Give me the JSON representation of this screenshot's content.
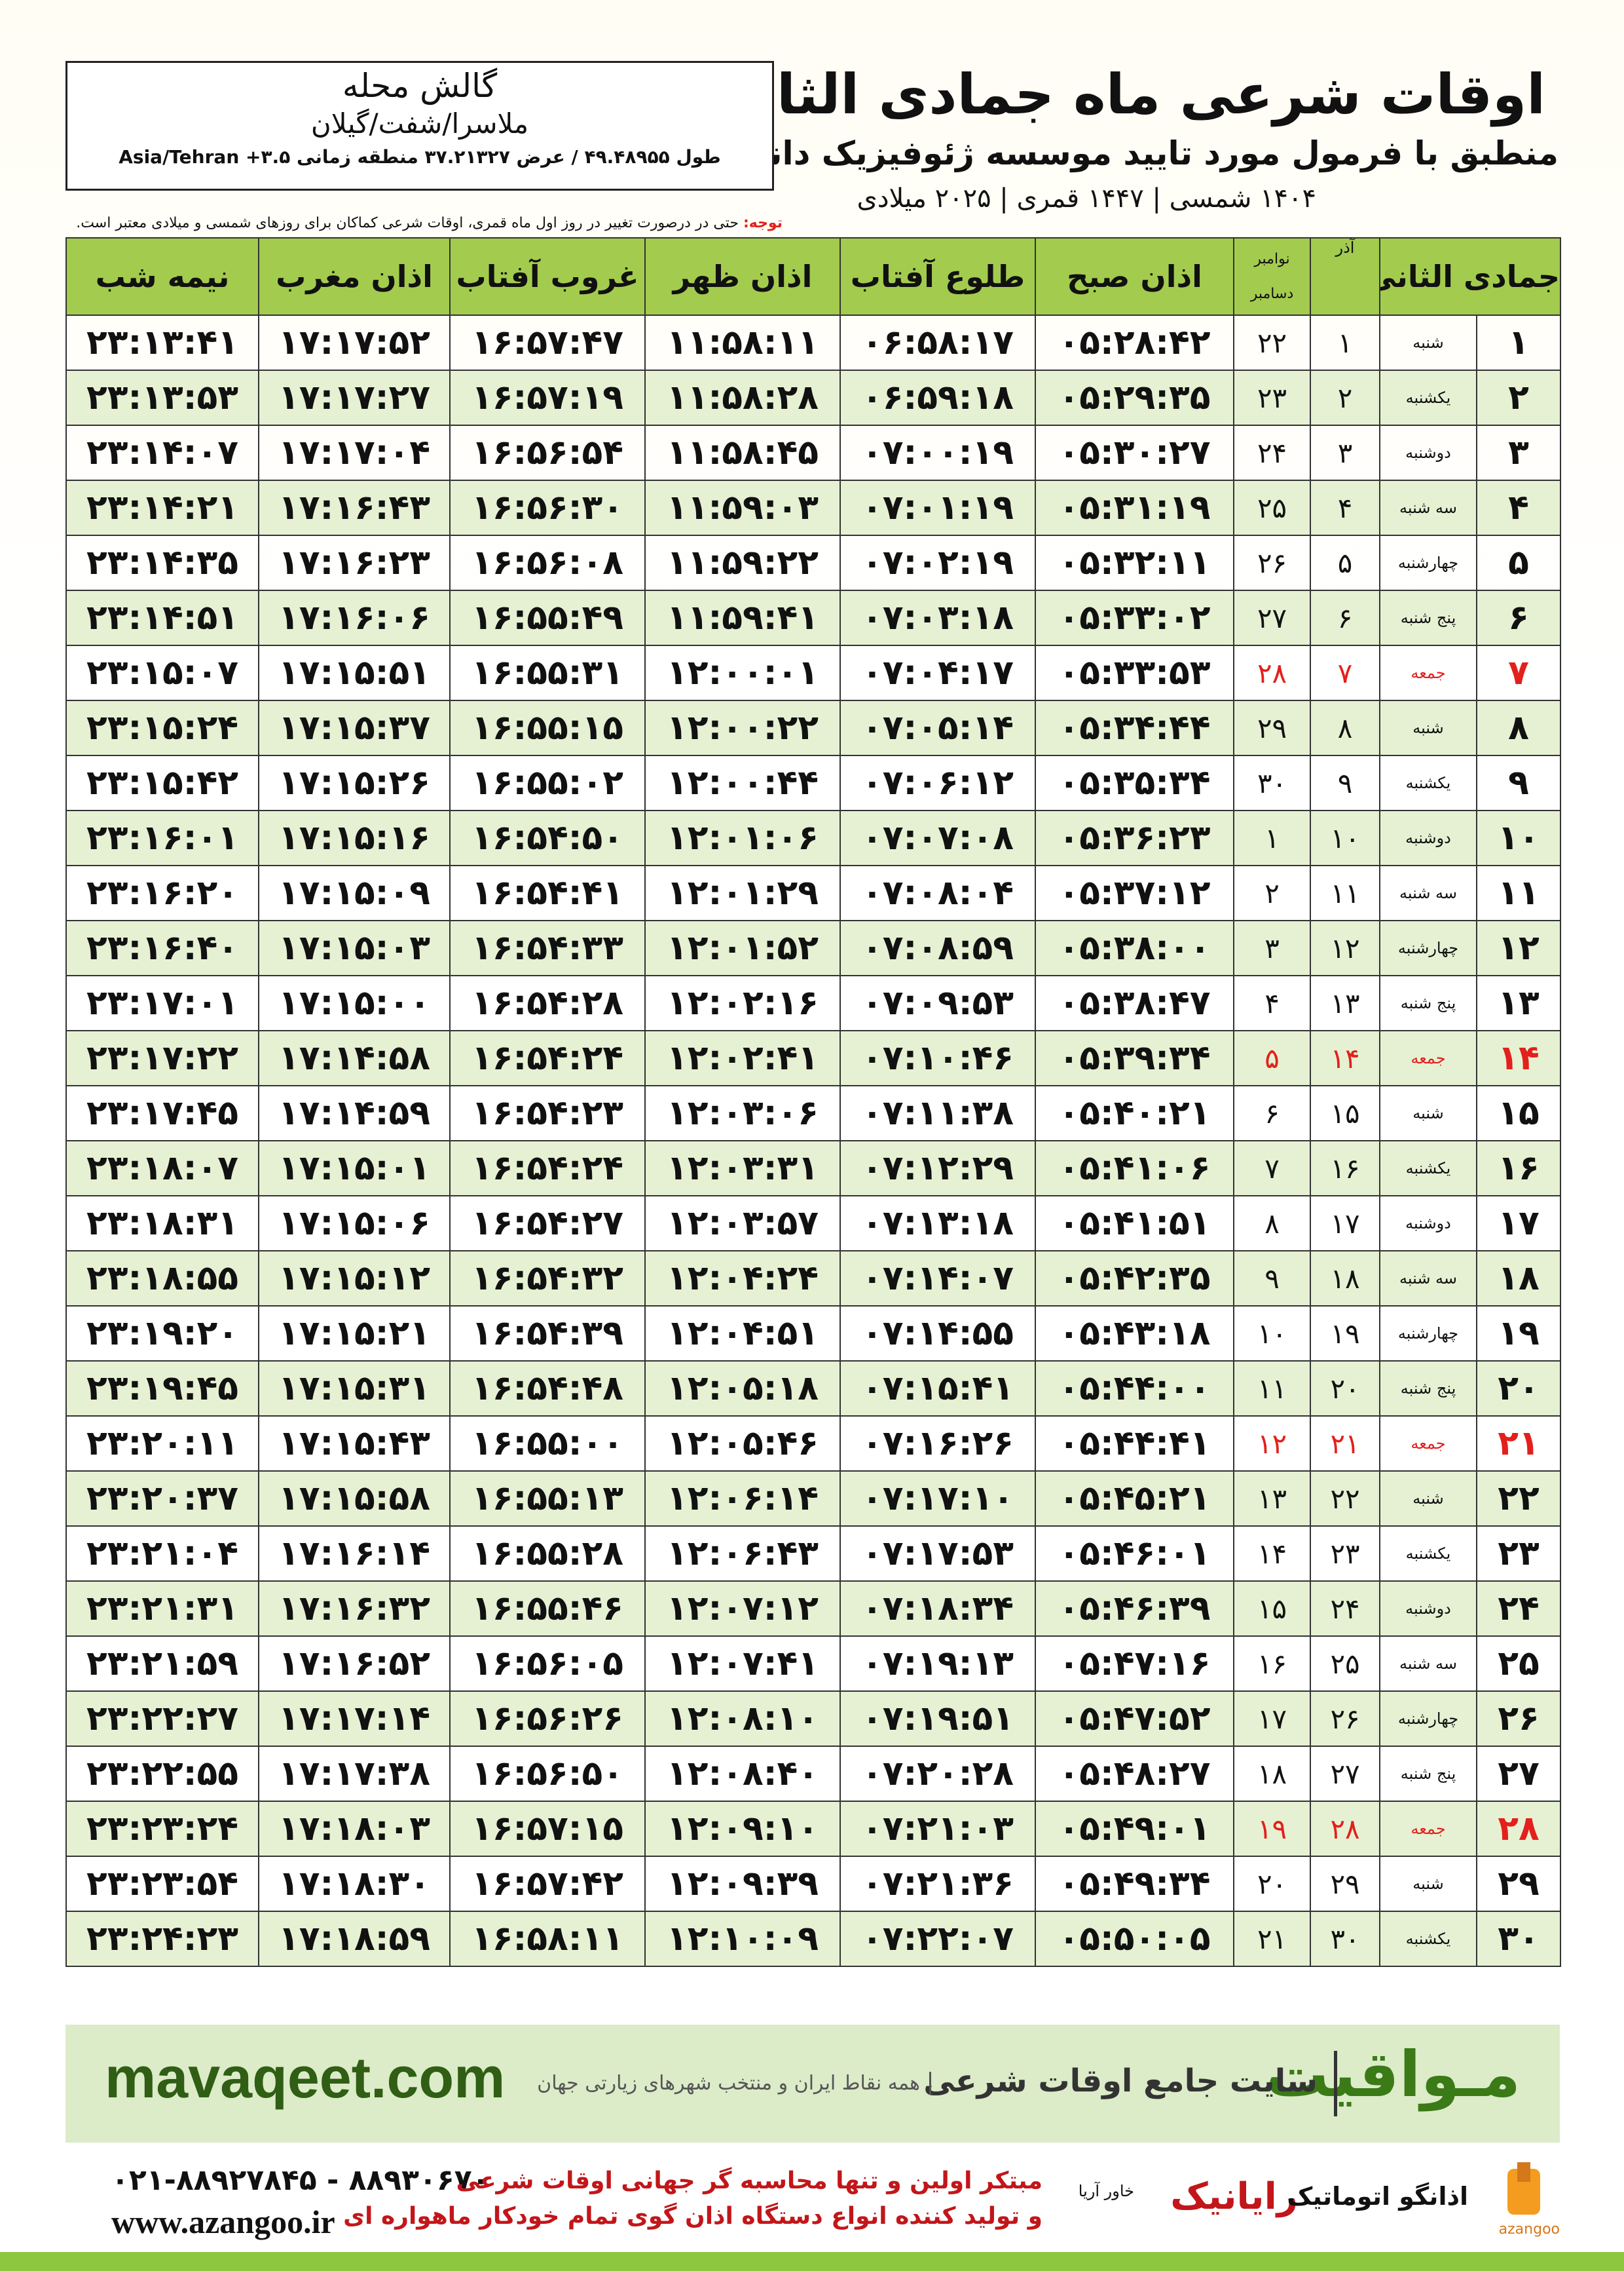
{
  "header": {
    "title": "اوقات شرعی ماه جمادی الثانی",
    "subtitle": "منطبق با فرمول مورد تایید موسسه ژئوفیزیک دانشگاه تهران",
    "dates": "۱۴۰۴ شمسی | ۱۴۴۷ قمری | ۲۰۲۵ میلادی"
  },
  "location": {
    "name": "گالش محله",
    "region": "ملاسرا/شفت/گیلان",
    "coords": "طول ۴۹.۴۸۹۵۵ / عرض ۳۷.۲۱۳۲۷ منطقه زمانی ۳.۵+ Asia/Tehran"
  },
  "note": {
    "label": "توجه:",
    "text": "حتی در درصورت تغییر در روز اول ماه قمری، اوقات شرعی کماکان برای روزهای شمسی و میلادی معتبر است."
  },
  "table": {
    "headers": {
      "hijri": "جمادی الثانی",
      "azar": "آذر",
      "gregorian_top": "نوامبر",
      "gregorian_bottom": "دسامبر",
      "times": [
        "اذان صبح",
        "طلوع آفتاب",
        "اذان ظهر",
        "غروب آفتاب",
        "اذان مغرب",
        "نیمه شب"
      ]
    },
    "highlight_color": "#e3201b",
    "rows": [
      {
        "hijri": "۱",
        "weekday": "شنبه",
        "azar": "۱",
        "gregorian": "۲۲",
        "times": [
          "۰۵:۲۸:۴۲",
          "۰۶:۵۸:۱۷",
          "۱۱:۵۸:۱۱",
          "۱۶:۵۷:۴۷",
          "۱۷:۱۷:۵۲",
          "۲۳:۱۳:۴۱"
        ]
      },
      {
        "hijri": "۲",
        "weekday": "یکشنبه",
        "azar": "۲",
        "gregorian": "۲۳",
        "times": [
          "۰۵:۲۹:۳۵",
          "۰۶:۵۹:۱۸",
          "۱۱:۵۸:۲۸",
          "۱۶:۵۷:۱۹",
          "۱۷:۱۷:۲۷",
          "۲۳:۱۳:۵۳"
        ]
      },
      {
        "hijri": "۳",
        "weekday": "دوشنبه",
        "azar": "۳",
        "gregorian": "۲۴",
        "times": [
          "۰۵:۳۰:۲۷",
          "۰۷:۰۰:۱۹",
          "۱۱:۵۸:۴۵",
          "۱۶:۵۶:۵۴",
          "۱۷:۱۷:۰۴",
          "۲۳:۱۴:۰۷"
        ]
      },
      {
        "hijri": "۴",
        "weekday": "سه شنبه",
        "azar": "۴",
        "gregorian": "۲۵",
        "times": [
          "۰۵:۳۱:۱۹",
          "۰۷:۰۱:۱۹",
          "۱۱:۵۹:۰۳",
          "۱۶:۵۶:۳۰",
          "۱۷:۱۶:۴۳",
          "۲۳:۱۴:۲۱"
        ]
      },
      {
        "hijri": "۵",
        "weekday": "چهارشنبه",
        "azar": "۵",
        "gregorian": "۲۶",
        "times": [
          "۰۵:۳۲:۱۱",
          "۰۷:۰۲:۱۹",
          "۱۱:۵۹:۲۲",
          "۱۶:۵۶:۰۸",
          "۱۷:۱۶:۲۳",
          "۲۳:۱۴:۳۵"
        ]
      },
      {
        "hijri": "۶",
        "weekday": "پنج شنبه",
        "azar": "۶",
        "gregorian": "۲۷",
        "times": [
          "۰۵:۳۳:۰۲",
          "۰۷:۰۳:۱۸",
          "۱۱:۵۹:۴۱",
          "۱۶:۵۵:۴۹",
          "۱۷:۱۶:۰۶",
          "۲۳:۱۴:۵۱"
        ]
      },
      {
        "hijri": "۷",
        "weekday": "جمعه",
        "azar": "۷",
        "gregorian": "۲۸",
        "times": [
          "۰۵:۳۳:۵۳",
          "۰۷:۰۴:۱۷",
          "۱۲:۰۰:۰۱",
          "۱۶:۵۵:۳۱",
          "۱۷:۱۵:۵۱",
          "۲۳:۱۵:۰۷"
        ],
        "highlight": true
      },
      {
        "hijri": "۸",
        "weekday": "شنبه",
        "azar": "۸",
        "gregorian": "۲۹",
        "times": [
          "۰۵:۳۴:۴۴",
          "۰۷:۰۵:۱۴",
          "۱۲:۰۰:۲۲",
          "۱۶:۵۵:۱۵",
          "۱۷:۱۵:۳۷",
          "۲۳:۱۵:۲۴"
        ]
      },
      {
        "hijri": "۹",
        "weekday": "یکشنبه",
        "azar": "۹",
        "gregorian": "۳۰",
        "times": [
          "۰۵:۳۵:۳۴",
          "۰۷:۰۶:۱۲",
          "۱۲:۰۰:۴۴",
          "۱۶:۵۵:۰۲",
          "۱۷:۱۵:۲۶",
          "۲۳:۱۵:۴۲"
        ]
      },
      {
        "hijri": "۱۰",
        "weekday": "دوشنبه",
        "azar": "۱۰",
        "gregorian": "۱",
        "times": [
          "۰۵:۳۶:۲۳",
          "۰۷:۰۷:۰۸",
          "۱۲:۰۱:۰۶",
          "۱۶:۵۴:۵۰",
          "۱۷:۱۵:۱۶",
          "۲۳:۱۶:۰۱"
        ]
      },
      {
        "hijri": "۱۱",
        "weekday": "سه شنبه",
        "azar": "۱۱",
        "gregorian": "۲",
        "times": [
          "۰۵:۳۷:۱۲",
          "۰۷:۰۸:۰۴",
          "۱۲:۰۱:۲۹",
          "۱۶:۵۴:۴۱",
          "۱۷:۱۵:۰۹",
          "۲۳:۱۶:۲۰"
        ]
      },
      {
        "hijri": "۱۲",
        "weekday": "چهارشنبه",
        "azar": "۱۲",
        "gregorian": "۳",
        "times": [
          "۰۵:۳۸:۰۰",
          "۰۷:۰۸:۵۹",
          "۱۲:۰۱:۵۲",
          "۱۶:۵۴:۳۳",
          "۱۷:۱۵:۰۳",
          "۲۳:۱۶:۴۰"
        ]
      },
      {
        "hijri": "۱۳",
        "weekday": "پنج شنبه",
        "azar": "۱۳",
        "gregorian": "۴",
        "times": [
          "۰۵:۳۸:۴۷",
          "۰۷:۰۹:۵۳",
          "۱۲:۰۲:۱۶",
          "۱۶:۵۴:۲۸",
          "۱۷:۱۵:۰۰",
          "۲۳:۱۷:۰۱"
        ]
      },
      {
        "hijri": "۱۴",
        "weekday": "جمعه",
        "azar": "۱۴",
        "gregorian": "۵",
        "times": [
          "۰۵:۳۹:۳۴",
          "۰۷:۱۰:۴۶",
          "۱۲:۰۲:۴۱",
          "۱۶:۵۴:۲۴",
          "۱۷:۱۴:۵۸",
          "۲۳:۱۷:۲۲"
        ],
        "highlight": true
      },
      {
        "hijri": "۱۵",
        "weekday": "شنبه",
        "azar": "۱۵",
        "gregorian": "۶",
        "times": [
          "۰۵:۴۰:۲۱",
          "۰۷:۱۱:۳۸",
          "۱۲:۰۳:۰۶",
          "۱۶:۵۴:۲۳",
          "۱۷:۱۴:۵۹",
          "۲۳:۱۷:۴۵"
        ]
      },
      {
        "hijri": "۱۶",
        "weekday": "یکشنبه",
        "azar": "۱۶",
        "gregorian": "۷",
        "times": [
          "۰۵:۴۱:۰۶",
          "۰۷:۱۲:۲۹",
          "۱۲:۰۳:۳۱",
          "۱۶:۵۴:۲۴",
          "۱۷:۱۵:۰۱",
          "۲۳:۱۸:۰۷"
        ]
      },
      {
        "hijri": "۱۷",
        "weekday": "دوشنبه",
        "azar": "۱۷",
        "gregorian": "۸",
        "times": [
          "۰۵:۴۱:۵۱",
          "۰۷:۱۳:۱۸",
          "۱۲:۰۳:۵۷",
          "۱۶:۵۴:۲۷",
          "۱۷:۱۵:۰۶",
          "۲۳:۱۸:۳۱"
        ]
      },
      {
        "hijri": "۱۸",
        "weekday": "سه شنبه",
        "azar": "۱۸",
        "gregorian": "۹",
        "times": [
          "۰۵:۴۲:۳۵",
          "۰۷:۱۴:۰۷",
          "۱۲:۰۴:۲۴",
          "۱۶:۵۴:۳۲",
          "۱۷:۱۵:۱۲",
          "۲۳:۱۸:۵۵"
        ]
      },
      {
        "hijri": "۱۹",
        "weekday": "چهارشنبه",
        "azar": "۱۹",
        "gregorian": "۱۰",
        "times": [
          "۰۵:۴۳:۱۸",
          "۰۷:۱۴:۵۵",
          "۱۲:۰۴:۵۱",
          "۱۶:۵۴:۳۹",
          "۱۷:۱۵:۲۱",
          "۲۳:۱۹:۲۰"
        ]
      },
      {
        "hijri": "۲۰",
        "weekday": "پنج شنبه",
        "azar": "۲۰",
        "gregorian": "۱۱",
        "times": [
          "۰۵:۴۴:۰۰",
          "۰۷:۱۵:۴۱",
          "۱۲:۰۵:۱۸",
          "۱۶:۵۴:۴۸",
          "۱۷:۱۵:۳۱",
          "۲۳:۱۹:۴۵"
        ]
      },
      {
        "hijri": "۲۱",
        "weekday": "جمعه",
        "azar": "۲۱",
        "gregorian": "۱۲",
        "times": [
          "۰۵:۴۴:۴۱",
          "۰۷:۱۶:۲۶",
          "۱۲:۰۵:۴۶",
          "۱۶:۵۵:۰۰",
          "۱۷:۱۵:۴۳",
          "۲۳:۲۰:۱۱"
        ],
        "highlight": true
      },
      {
        "hijri": "۲۲",
        "weekday": "شنبه",
        "azar": "۲۲",
        "gregorian": "۱۳",
        "times": [
          "۰۵:۴۵:۲۱",
          "۰۷:۱۷:۱۰",
          "۱۲:۰۶:۱۴",
          "۱۶:۵۵:۱۳",
          "۱۷:۱۵:۵۸",
          "۲۳:۲۰:۳۷"
        ]
      },
      {
        "hijri": "۲۳",
        "weekday": "یکشنبه",
        "azar": "۲۳",
        "gregorian": "۱۴",
        "times": [
          "۰۵:۴۶:۰۱",
          "۰۷:۱۷:۵۳",
          "۱۲:۰۶:۴۳",
          "۱۶:۵۵:۲۸",
          "۱۷:۱۶:۱۴",
          "۲۳:۲۱:۰۴"
        ]
      },
      {
        "hijri": "۲۴",
        "weekday": "دوشنبه",
        "azar": "۲۴",
        "gregorian": "۱۵",
        "times": [
          "۰۵:۴۶:۳۹",
          "۰۷:۱۸:۳۴",
          "۱۲:۰۷:۱۲",
          "۱۶:۵۵:۴۶",
          "۱۷:۱۶:۳۲",
          "۲۳:۲۱:۳۱"
        ]
      },
      {
        "hijri": "۲۵",
        "weekday": "سه شنبه",
        "azar": "۲۵",
        "gregorian": "۱۶",
        "times": [
          "۰۵:۴۷:۱۶",
          "۰۷:۱۹:۱۳",
          "۱۲:۰۷:۴۱",
          "۱۶:۵۶:۰۵",
          "۱۷:۱۶:۵۲",
          "۲۳:۲۱:۵۹"
        ]
      },
      {
        "hijri": "۲۶",
        "weekday": "چهارشنبه",
        "azar": "۲۶",
        "gregorian": "۱۷",
        "times": [
          "۰۵:۴۷:۵۲",
          "۰۷:۱۹:۵۱",
          "۱۲:۰۸:۱۰",
          "۱۶:۵۶:۲۶",
          "۱۷:۱۷:۱۴",
          "۲۳:۲۲:۲۷"
        ]
      },
      {
        "hijri": "۲۷",
        "weekday": "پنج شنبه",
        "azar": "۲۷",
        "gregorian": "۱۸",
        "times": [
          "۰۵:۴۸:۲۷",
          "۰۷:۲۰:۲۸",
          "۱۲:۰۸:۴۰",
          "۱۶:۵۶:۵۰",
          "۱۷:۱۷:۳۸",
          "۲۳:۲۲:۵۵"
        ]
      },
      {
        "hijri": "۲۸",
        "weekday": "جمعه",
        "azar": "۲۸",
        "gregorian": "۱۹",
        "times": [
          "۰۵:۴۹:۰۱",
          "۰۷:۲۱:۰۳",
          "۱۲:۰۹:۱۰",
          "۱۶:۵۷:۱۵",
          "۱۷:۱۸:۰۳",
          "۲۳:۲۳:۲۴"
        ],
        "highlight": true
      },
      {
        "hijri": "۲۹",
        "weekday": "شنبه",
        "azar": "۲۹",
        "gregorian": "۲۰",
        "times": [
          "۰۵:۴۹:۳۴",
          "۰۷:۲۱:۳۶",
          "۱۲:۰۹:۳۹",
          "۱۶:۵۷:۴۲",
          "۱۷:۱۸:۳۰",
          "۲۳:۲۳:۵۴"
        ]
      },
      {
        "hijri": "۳۰",
        "weekday": "یکشنبه",
        "azar": "۳۰",
        "gregorian": "۲۱",
        "times": [
          "۰۵:۵۰:۰۵",
          "۰۷:۲۲:۰۷",
          "۱۲:۱۰:۰۹",
          "۱۶:۵۸:۱۱",
          "۱۷:۱۸:۵۹",
          "۲۳:۲۴:۲۳"
        ]
      }
    ]
  },
  "banner": {
    "site": "mavaqeet.com",
    "brand": "مـواقیت",
    "tagline": "سایت جامع اوقات شرعی",
    "subtag": "همه نقاط ایران و منتخب شهرهای زیارتی جهان"
  },
  "footer": {
    "phone": "۰۲۱-۸۸۹۲۷۸۴۵ - ۸۸۹۳۰۶۷۰",
    "web": "www.azangoo.ir",
    "line1": "مبتکر اولین و تنها محاسبه گر جهانی اوقات شرعی",
    "line2": "و تولید کننده انواع دستگاه اذان گوی تمام خودکار ماهواره ای",
    "logo1": "رایانیک",
    "logo1_sub": "خاور آریا",
    "logo2": "اذانگو اتوماتیک",
    "logo2_sub": "azangoo"
  }
}
